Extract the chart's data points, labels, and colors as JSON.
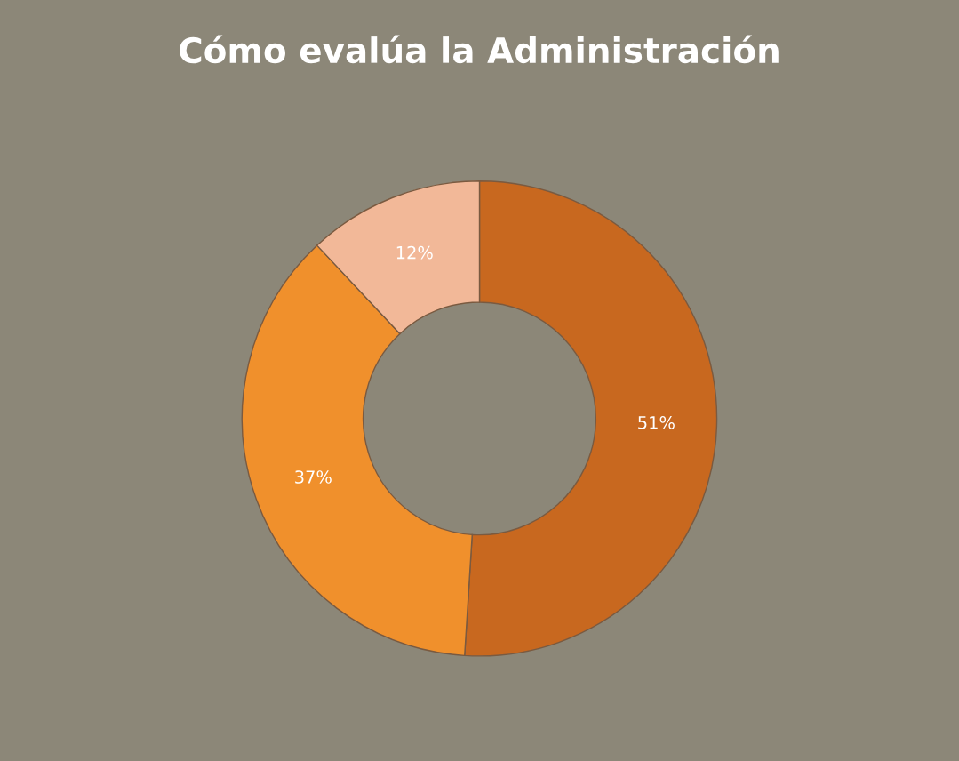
{
  "chart_data": {
    "type": "donut",
    "title": "Cómo evalúa la Administración",
    "categories": [
      null,
      null,
      null
    ],
    "values": [
      51,
      37,
      12
    ],
    "colors": [
      "#c8681f",
      "#f0902c",
      "#f2b898"
    ],
    "value_labels": [
      "51%",
      "37%",
      "12%"
    ]
  }
}
